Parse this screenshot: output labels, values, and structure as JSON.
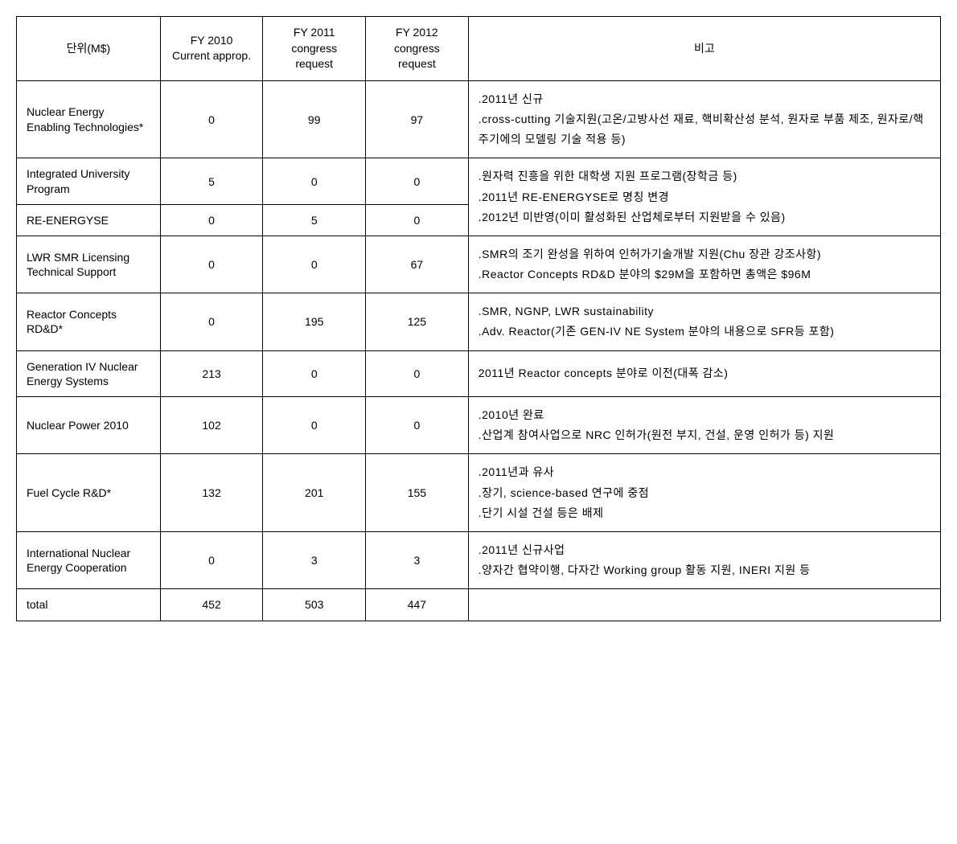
{
  "table": {
    "headers": {
      "unit": "단위(M$)",
      "fy2010": "FY 2010 Current approp.",
      "fy2011": "FY 2011 congress request",
      "fy2012": "FY 2012 congress request",
      "notes": "비고"
    },
    "rows": [
      {
        "name": "Nuclear Energy Enabling Technologies*",
        "fy2010": "0",
        "fy2011": "99",
        "fy2012": "97",
        "notes": [
          ".2011년 신규",
          ".cross-cutting 기술지원(고온/고방사선 재료, 핵비확산성 분석, 원자로 부품 제조, 원자로/핵주기에의 모델링 기술 적용 등)"
        ]
      },
      {
        "name": "Integrated University Program",
        "fy2010": "5",
        "fy2011": "0",
        "fy2012": "0",
        "notes": [
          ".원자력 진흥을 위한 대학생 지원 프로그램(장학금 등)",
          ".2011년 RE-ENERGYSE로 명칭 변경",
          ".2012년 미반영(이미 활성화된 산업체로부터 지원받을 수 있음)"
        ],
        "merged_notes_rowspan": 2
      },
      {
        "name": "RE-ENERGYSE",
        "fy2010": "0",
        "fy2011": "5",
        "fy2012": "0",
        "notes": null
      },
      {
        "name": "LWR SMR Licensing Technical Support",
        "fy2010": "0",
        "fy2011": "0",
        "fy2012": "67",
        "notes": [
          ".SMR의 조기 완성을 위하여 인허가기술개발 지원(Chu 장관 강조사항)",
          ".Reactor Concepts RD&D 분야의 $29M을 포함하면 총액은 $96M"
        ]
      },
      {
        "name": "Reactor Concepts RD&D*",
        "fy2010": "0",
        "fy2011": "195",
        "fy2012": "125",
        "notes": [
          ".SMR, NGNP, LWR sustainability",
          ".Adv. Reactor(기존 GEN-IV NE System 분야의 내용으로 SFR등 포함)"
        ]
      },
      {
        "name": "Generation IV Nuclear Energy Systems",
        "fy2010": "213",
        "fy2011": "0",
        "fy2012": "0",
        "notes": [
          "2011년 Reactor concepts 분야로 이전(대폭 감소)"
        ]
      },
      {
        "name": "Nuclear Power 2010",
        "fy2010": "102",
        "fy2011": "0",
        "fy2012": "0",
        "notes": [
          ".2010년 완료",
          ".산업계 참여사업으로 NRC 인허가(원전 부지, 건설, 운영 인허가 등) 지원"
        ]
      },
      {
        "name": "Fuel Cycle R&D*",
        "fy2010": "132",
        "fy2011": "201",
        "fy2012": "155",
        "notes": [
          ".2011년과 유사",
          ".장기, science-based 연구에 중점",
          ".단기 시설 건설 등은 배제"
        ]
      },
      {
        "name": "International Nuclear Energy Cooperation",
        "fy2010": "0",
        "fy2011": "3",
        "fy2012": "3",
        "notes": [
          ".2011년 신규사업",
          ".양자간 협약이행, 다자간 Working group 활동 지원, INERI 지원 등"
        ]
      },
      {
        "name": "total",
        "fy2010": "452",
        "fy2011": "503",
        "fy2012": "447",
        "notes": [
          ""
        ]
      }
    ],
    "styling": {
      "border_color": "#000000",
      "background_color": "#ffffff",
      "text_color": "#000000",
      "font_size": 14,
      "header_font_size": 14,
      "line_height_notes": 1.8,
      "font_family": "Malgun Gothic"
    }
  }
}
